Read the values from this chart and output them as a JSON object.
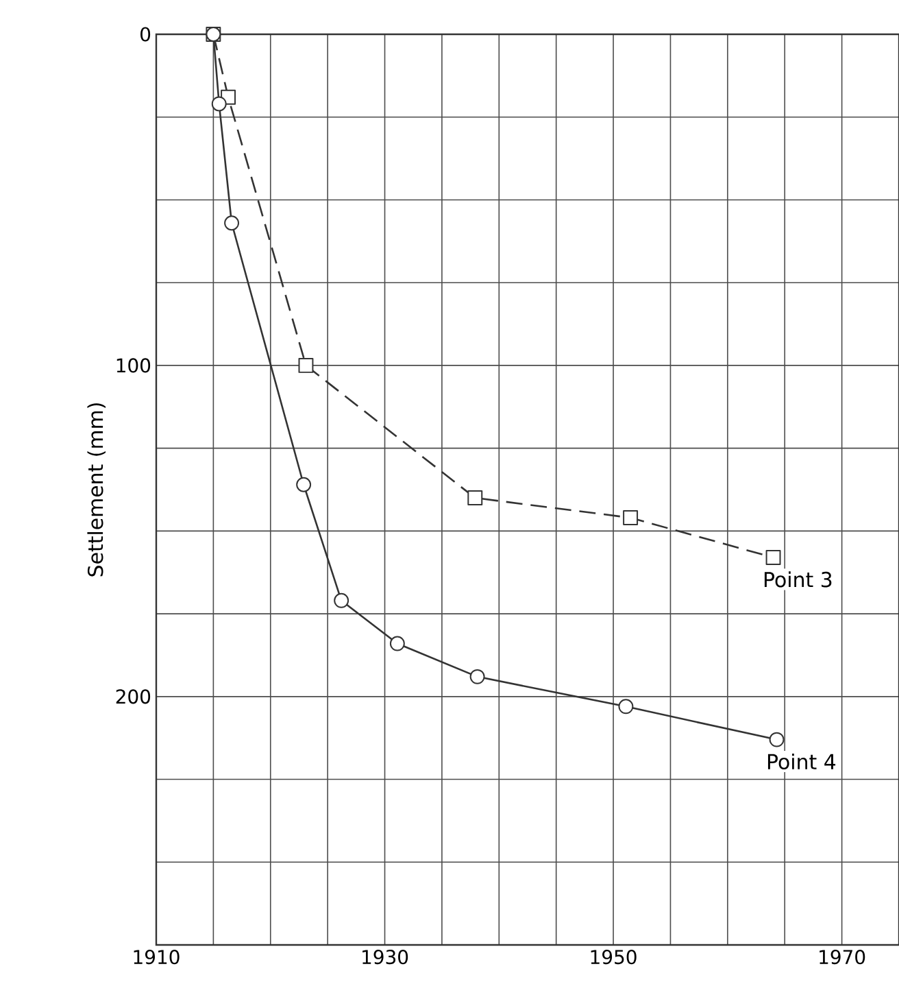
{
  "chart_data": {
    "type": "line",
    "ylabel": "Settlement (mm)",
    "xlim": [
      1910,
      1975
    ],
    "ylim": [
      275,
      0
    ],
    "xticks": [
      1910,
      {
        "value": 1915,
        "label": null
      },
      {
        "value": 1920,
        "label": null
      },
      {
        "value": 1925,
        "label": null
      },
      1930,
      {
        "value": 1935,
        "label": null
      },
      {
        "value": 1940,
        "label": null
      },
      {
        "value": 1945,
        "label": null
      },
      1950,
      {
        "value": 1955,
        "label": null
      },
      {
        "value": 1960,
        "label": null
      },
      {
        "value": 1965,
        "label": null
      },
      1970
    ],
    "yticks": [
      0,
      {
        "value": 25,
        "label": null
      },
      {
        "value": 50,
        "label": null
      },
      {
        "value": 75,
        "label": null
      },
      100,
      {
        "value": 125,
        "label": null
      },
      {
        "value": 150,
        "label": null
      },
      {
        "value": 175,
        "label": null
      },
      200,
      {
        "value": 225,
        "label": null
      },
      {
        "value": 250,
        "label": null
      }
    ],
    "grid": true,
    "legend": false,
    "series": [
      {
        "name": "Point 3",
        "color": "#333333",
        "marker": "square",
        "line_style": "dashed",
        "x": [
          1915,
          1916.3,
          1923.1,
          1937.9,
          1951.5,
          1964
        ],
        "values": [
          0,
          19,
          100,
          140,
          146,
          158
        ]
      },
      {
        "name": "Point 4",
        "color": "#333333",
        "marker": "circle",
        "line_style": "solid",
        "x": [
          1915,
          1915.5,
          1916.6,
          1922.9,
          1926.2,
          1931.1,
          1938.1,
          1951.1,
          1964.3
        ],
        "values": [
          0,
          21,
          57,
          136,
          171,
          184,
          194,
          203,
          213
        ]
      }
    ]
  }
}
